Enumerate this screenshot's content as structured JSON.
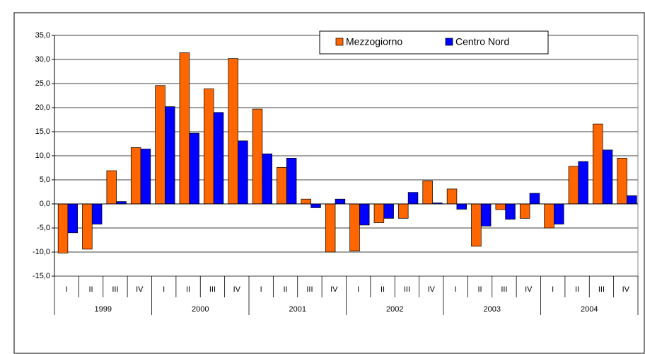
{
  "chart_data": {
    "type": "bar",
    "categories": [
      "I",
      "II",
      "III",
      "IV",
      "I",
      "II",
      "III",
      "IV",
      "I",
      "II",
      "III",
      "IV",
      "I",
      "II",
      "III",
      "IV",
      "I",
      "II",
      "III",
      "IV",
      "I",
      "II",
      "III",
      "IV"
    ],
    "groups": [
      "1999",
      "2000",
      "2001",
      "2002",
      "2003",
      "2004"
    ],
    "series": [
      {
        "name": "Mezzogiorno",
        "color": "#ff6600",
        "values": [
          -10.2,
          -9.4,
          6.9,
          11.7,
          24.6,
          31.4,
          23.9,
          30.2,
          19.7,
          7.6,
          1.0,
          -10.0,
          -9.8,
          -3.9,
          -3.0,
          4.8,
          3.1,
          -8.8,
          -1.2,
          -3.0,
          -5.0,
          7.8,
          16.6,
          9.5
        ]
      },
      {
        "name": "Centro Nord",
        "color": "#0000ff",
        "values": [
          -6.0,
          -4.2,
          0.5,
          11.4,
          20.2,
          14.7,
          19.0,
          13.1,
          10.4,
          9.5,
          -0.8,
          1.0,
          -4.4,
          -3.0,
          2.4,
          0.2,
          -1.1,
          -4.6,
          -3.2,
          2.2,
          -4.2,
          8.8,
          11.2,
          1.7
        ]
      }
    ],
    "ylim": [
      -15,
      35
    ],
    "yticks": [
      {
        "value": -15,
        "label": "-15,0"
      },
      {
        "value": -10,
        "label": "-10,0"
      },
      {
        "value": -5,
        "label": "-5,0"
      },
      {
        "value": 0,
        "label": "0,0"
      },
      {
        "value": 5,
        "label": "5,0"
      },
      {
        "value": 10,
        "label": "10,0"
      },
      {
        "value": 15,
        "label": "15,0"
      },
      {
        "value": 20,
        "label": "20,0"
      },
      {
        "value": 25,
        "label": "25,0"
      },
      {
        "value": 30,
        "label": "30,0"
      },
      {
        "value": 35,
        "label": "35,0"
      }
    ],
    "grid": true
  }
}
